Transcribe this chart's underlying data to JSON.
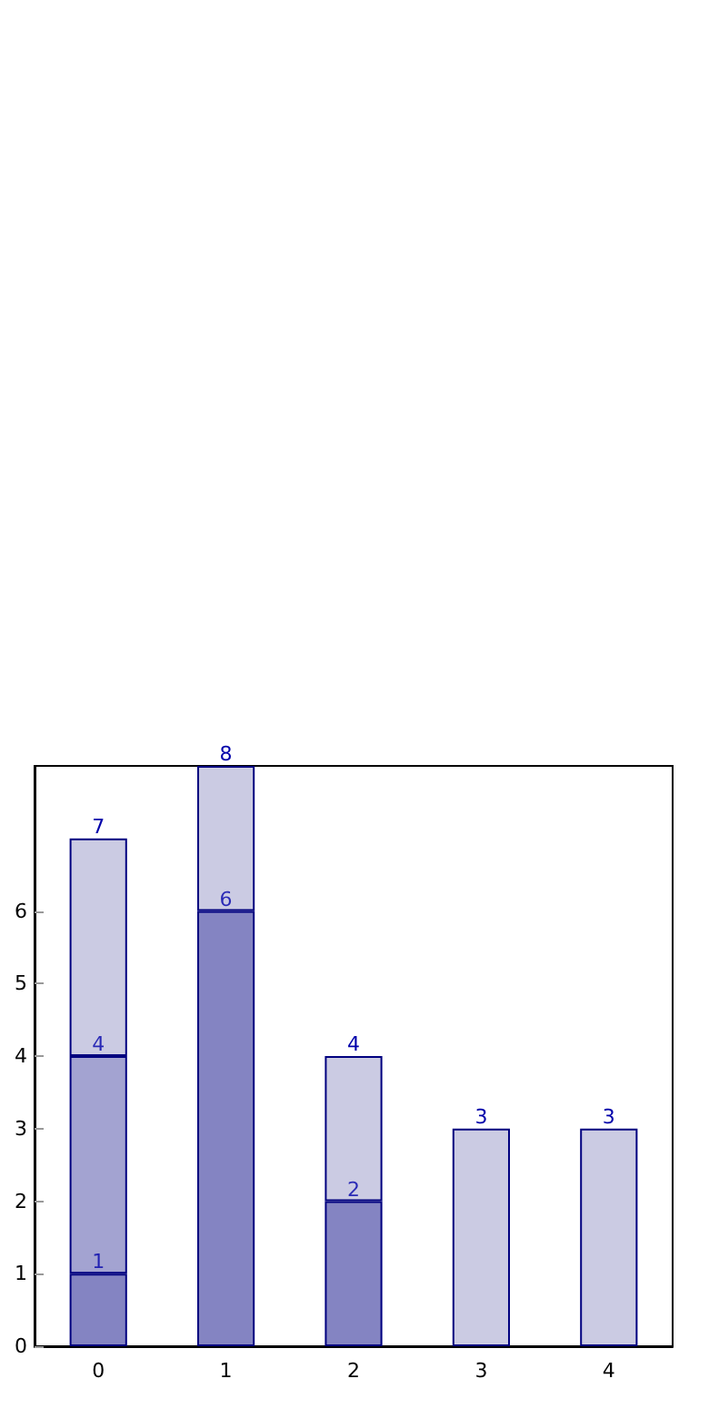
{
  "chart_data": {
    "type": "bar",
    "stacked": true,
    "categories": [
      "0",
      "1",
      "2",
      "3",
      "4"
    ],
    "ylim": [
      0,
      8
    ],
    "yticks": [
      0,
      1,
      2,
      3,
      4,
      5,
      6
    ],
    "grid": false,
    "series": [
      {
        "color": "#8484c2",
        "values": [
          1,
          6,
          2,
          null,
          null
        ]
      },
      {
        "color": "#a3a3d1",
        "values": [
          3,
          null,
          null,
          null,
          null
        ]
      },
      {
        "color": "#cbcbe3",
        "values": [
          3,
          2,
          2,
          3,
          3
        ]
      }
    ],
    "totals": [
      "7",
      "8",
      "4",
      "3",
      "3"
    ],
    "annotations": [
      {
        "text": "1",
        "x": "0",
        "y": 1
      },
      {
        "text": "4",
        "x": "0",
        "y": 4
      },
      {
        "text": "6",
        "x": "1",
        "y": 6
      },
      {
        "text": "2",
        "x": "2",
        "y": 2
      }
    ]
  }
}
